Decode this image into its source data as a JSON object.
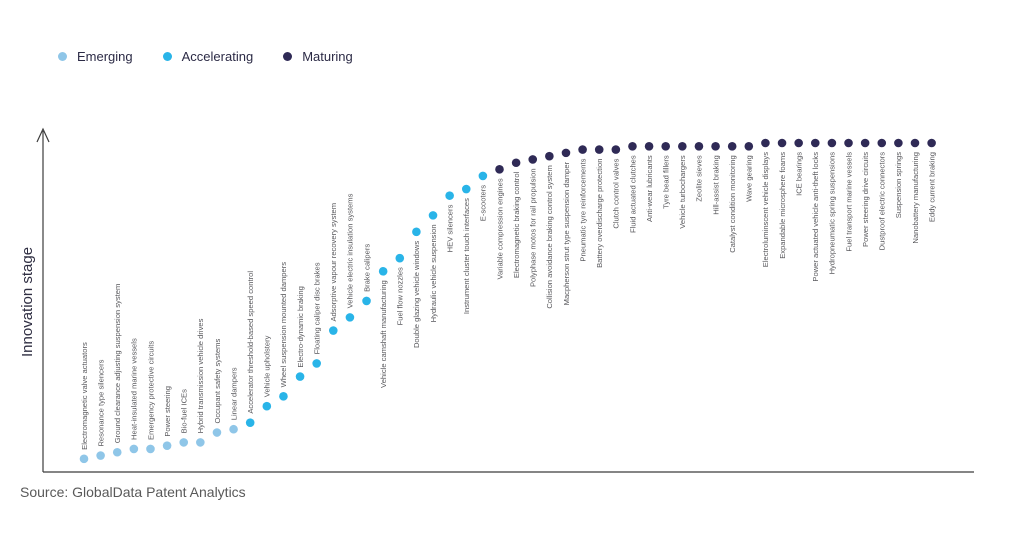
{
  "legend": {
    "items": [
      {
        "label": "Emerging",
        "color": "#8FC6E8"
      },
      {
        "label": "Accelerating",
        "color": "#29B4E8"
      },
      {
        "label": "Maturing",
        "color": "#2F2A56"
      }
    ]
  },
  "source": "Source: GlobalData Patent Analytics",
  "chart_data": {
    "type": "scatter",
    "title": "",
    "xlabel": "",
    "ylabel": "Innovation stage",
    "grid": false,
    "legend_position": "top-left",
    "y_axis": {
      "style": "arrow, no ticks",
      "relative_scale": [
        0,
        100
      ]
    },
    "stages": [
      "Emerging",
      "Accelerating",
      "Maturing"
    ],
    "points": [
      {
        "label": "Electromagnetic valve actuators",
        "stage": "Emerging",
        "level": 4
      },
      {
        "label": "Resonance type silencers",
        "stage": "Emerging",
        "level": 5
      },
      {
        "label": "Ground clearance adjusting suspension system",
        "stage": "Emerging",
        "level": 6
      },
      {
        "label": "Heat-insulated marine vessels",
        "stage": "Emerging",
        "level": 7
      },
      {
        "label": "Emergency protective circuits",
        "stage": "Emerging",
        "level": 7
      },
      {
        "label": "Power steering",
        "stage": "Emerging",
        "level": 8
      },
      {
        "label": "Bio-fuel ICEs",
        "stage": "Emerging",
        "level": 9
      },
      {
        "label": "Hybrid transmission vehicle drives",
        "stage": "Emerging",
        "level": 9
      },
      {
        "label": "Occupant safety systems",
        "stage": "Emerging",
        "level": 12
      },
      {
        "label": "Linear dampers",
        "stage": "Emerging",
        "level": 13
      },
      {
        "label": "Accelerator threshold-based speed control",
        "stage": "Accelerating",
        "level": 15
      },
      {
        "label": "Vehicle upholstery",
        "stage": "Accelerating",
        "level": 20
      },
      {
        "label": "Wheel suspension mounted dampers",
        "stage": "Accelerating",
        "level": 23
      },
      {
        "label": "Electro-dynamic braking",
        "stage": "Accelerating",
        "level": 29
      },
      {
        "label": "Floating caliper disc brakes",
        "stage": "Accelerating",
        "level": 33
      },
      {
        "label": "Adsorptive vapour recovery system",
        "stage": "Accelerating",
        "level": 43
      },
      {
        "label": "Vehicle electric insulation systems",
        "stage": "Accelerating",
        "level": 47
      },
      {
        "label": "Brake calipers",
        "stage": "Accelerating",
        "level": 52
      },
      {
        "label": "Vehicle camshaft manufacturing",
        "stage": "Accelerating",
        "level": 61
      },
      {
        "label": "Fuel flow nozzles",
        "stage": "Accelerating",
        "level": 65
      },
      {
        "label": "Double glazing vehicle windows",
        "stage": "Accelerating",
        "level": 73
      },
      {
        "label": "Hydraulic vehicle suspension",
        "stage": "Accelerating",
        "level": 78
      },
      {
        "label": "HEV silencers",
        "stage": "Accelerating",
        "level": 84
      },
      {
        "label": "Instrument cluster touch interfaces",
        "stage": "Accelerating",
        "level": 86
      },
      {
        "label": "E-scooters",
        "stage": "Accelerating",
        "level": 90
      },
      {
        "label": "Variable compression engines",
        "stage": "Maturing",
        "level": 92
      },
      {
        "label": "Electromagnetic braking control",
        "stage": "Maturing",
        "level": 94
      },
      {
        "label": "Polyphase motos for rail propulsion",
        "stage": "Maturing",
        "level": 95
      },
      {
        "label": "Collision avoidance braking control system",
        "stage": "Maturing",
        "level": 96
      },
      {
        "label": "Macpherson strut type suspension damper",
        "stage": "Maturing",
        "level": 97
      },
      {
        "label": "Pneumatic tyre reinforcements",
        "stage": "Maturing",
        "level": 98
      },
      {
        "label": "Battery overdischarge protection",
        "stage": "Maturing",
        "level": 98
      },
      {
        "label": "Clutch control valves",
        "stage": "Maturing",
        "level": 98
      },
      {
        "label": "Fluid actuated clutches",
        "stage": "Maturing",
        "level": 99
      },
      {
        "label": "Anti-wear lubricants",
        "stage": "Maturing",
        "level": 99
      },
      {
        "label": "Tyre bead fillers",
        "stage": "Maturing",
        "level": 99
      },
      {
        "label": "Vehicle turbochargers",
        "stage": "Maturing",
        "level": 99
      },
      {
        "label": "Zeolite sieves",
        "stage": "Maturing",
        "level": 99
      },
      {
        "label": "Hill-assist braking",
        "stage": "Maturing",
        "level": 99
      },
      {
        "label": "Catalyst condition monitoring",
        "stage": "Maturing",
        "level": 99
      },
      {
        "label": "Wave gearing",
        "stage": "Maturing",
        "level": 99
      },
      {
        "label": "Electroluminscent vehicle displays",
        "stage": "Maturing",
        "level": 100
      },
      {
        "label": "Expandable microsphere foams",
        "stage": "Maturing",
        "level": 100
      },
      {
        "label": "ICE bearings",
        "stage": "Maturing",
        "level": 100
      },
      {
        "label": "Power actuated vehicle anti-theft locks",
        "stage": "Maturing",
        "level": 100
      },
      {
        "label": "Hydropneumatic spring suspensions",
        "stage": "Maturing",
        "level": 100
      },
      {
        "label": "Fuel transport marine vessels",
        "stage": "Maturing",
        "level": 100
      },
      {
        "label": "Power steering drive circuits",
        "stage": "Maturing",
        "level": 100
      },
      {
        "label": "Dustproof electric connectors",
        "stage": "Maturing",
        "level": 100
      },
      {
        "label": "Suspension springs",
        "stage": "Maturing",
        "level": 100
      },
      {
        "label": "Nanobattery manufacturing",
        "stage": "Maturing",
        "level": 100
      },
      {
        "label": "Eddy current braking",
        "stage": "Maturing",
        "level": 100
      }
    ]
  }
}
